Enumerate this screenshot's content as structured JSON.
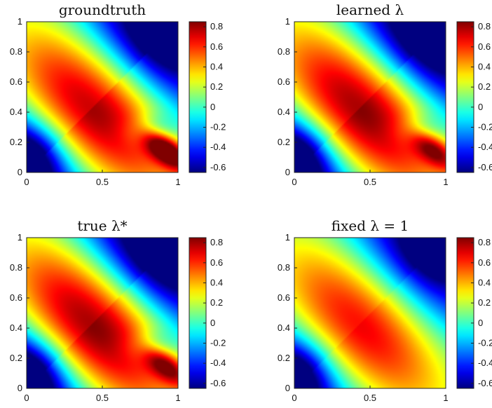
{
  "chart_data": [
    {
      "type": "heatmap",
      "title": "groundtruth",
      "xlim": [
        0,
        1
      ],
      "ylim": [
        0,
        1
      ],
      "x_ticks": [
        "0",
        "0.5",
        "1"
      ],
      "y_ticks": [
        "0",
        "0.2",
        "0.4",
        "0.6",
        "0.8",
        "1"
      ],
      "colorbar": {
        "colormap": "jet",
        "min": -0.65,
        "max": 0.85,
        "ticks": [
          "0.8",
          "0.6",
          "0.4",
          "0.2",
          "0",
          "-0.2",
          "-0.4",
          "-0.6"
        ]
      },
      "field": {
        "ridge_amplitude": 0.75,
        "lobe_amplitude": 0.45,
        "lobe_strength": 1.0,
        "tilt": 0.35
      }
    },
    {
      "type": "heatmap",
      "title": "learned λ",
      "xlim": [
        0,
        1
      ],
      "ylim": [
        0,
        1
      ],
      "x_ticks": [
        "0",
        "0.5",
        "1"
      ],
      "y_ticks": [
        "0",
        "0.2",
        "0.4",
        "0.6",
        "0.8",
        "1"
      ],
      "colorbar": {
        "colormap": "jet",
        "min": -0.65,
        "max": 0.85,
        "ticks": [
          "0.8",
          "0.6",
          "0.4",
          "0.2",
          "0",
          "-0.2",
          "-0.4",
          "-0.6"
        ]
      },
      "field": {
        "ridge_amplitude": 0.8,
        "lobe_amplitude": 0.3,
        "lobe_strength": 0.8,
        "tilt": 0.3
      }
    },
    {
      "type": "heatmap",
      "title": "true λ*",
      "xlim": [
        0,
        1
      ],
      "ylim": [
        0,
        1
      ],
      "x_ticks": [
        "0",
        "0.5",
        "1"
      ],
      "y_ticks": [
        "0",
        "0.2",
        "0.4",
        "0.6",
        "0.8",
        "1"
      ],
      "colorbar": {
        "colormap": "jet",
        "min": -0.65,
        "max": 0.85,
        "ticks": [
          "0.8",
          "0.6",
          "0.4",
          "0.2",
          "0",
          "-0.2",
          "-0.4",
          "-0.6"
        ]
      },
      "field": {
        "ridge_amplitude": 0.8,
        "lobe_amplitude": 0.32,
        "lobe_strength": 0.85,
        "tilt": 0.3
      }
    },
    {
      "type": "heatmap",
      "title": "fixed λ = 1",
      "xlim": [
        0,
        1
      ],
      "ylim": [
        0,
        1
      ],
      "x_ticks": [
        "0",
        "0.5",
        "1"
      ],
      "y_ticks": [
        "0",
        "0.2",
        "0.4",
        "0.6",
        "0.8",
        "1"
      ],
      "colorbar": {
        "colormap": "jet",
        "min": -0.65,
        "max": 0.85,
        "ticks": [
          "0.8",
          "0.6",
          "0.4",
          "0.2",
          "0",
          "-0.2",
          "-0.4",
          "-0.6"
        ]
      },
      "field": {
        "ridge_amplitude": 0.65,
        "lobe_amplitude": 0.05,
        "lobe_strength": 0.0,
        "tilt": 0.2
      }
    }
  ]
}
